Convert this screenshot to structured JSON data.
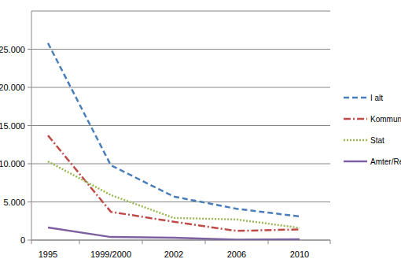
{
  "chart_data": {
    "type": "line",
    "categories": [
      "1995",
      "1999/2000",
      "2002",
      "2006",
      "2010"
    ],
    "series": [
      {
        "name": "I alt",
        "color": "#4a7ebb",
        "line_style": "dashed",
        "values": [
          25800,
          9800,
          5700,
          4100,
          3100
        ]
      },
      {
        "name": "Kommuner",
        "color": "#be4b48",
        "line_style": "dashdot",
        "values": [
          13700,
          3700,
          2400,
          1200,
          1400
        ]
      },
      {
        "name": "Stat",
        "color": "#98b954",
        "line_style": "dotted",
        "values": [
          10300,
          5900,
          2900,
          2700,
          1600
        ]
      },
      {
        "name": "Amter/Regione",
        "color": "#7d60a0",
        "line_style": "solid",
        "values": [
          1650,
          400,
          300,
          50,
          100
        ]
      }
    ],
    "ylim": [
      0,
      30000
    ],
    "yticks": [
      0,
      {
        "value": 5000,
        "label": "5.000"
      },
      {
        "value": 10000,
        "label": "10.000"
      },
      {
        "value": 15000,
        "label": "15.000"
      },
      {
        "value": 20000,
        "label": "20.000"
      },
      {
        "value": 25000,
        "label": "25.000"
      }
    ],
    "grid": true,
    "legend": "right"
  }
}
